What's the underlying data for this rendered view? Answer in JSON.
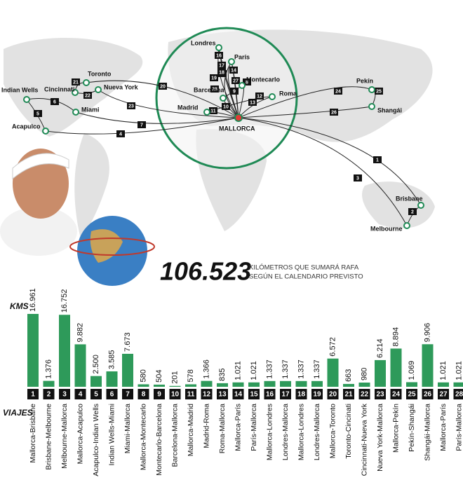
{
  "headline": {
    "total": "106.523",
    "caption_1": "KILÓMETROS QUE SUMARÁ RAFA",
    "caption_2": "SEGÚN EL CALENDARIO PREVISTO"
  },
  "map": {
    "cities": [
      "Londres",
      "París",
      "Barcelona",
      "Montecarlo",
      "Roma",
      "Madrid",
      "MALLORCA",
      "Toronto",
      "Cincinnati",
      "Nueva York",
      "Indian Wells",
      "Miami",
      "Acapulco",
      "Pekín",
      "Shangái",
      "Brisbane",
      "Melbourne"
    ]
  },
  "chart_data": {
    "type": "bar",
    "y_label": "KMS",
    "x_label": "VIAJES",
    "color": "#2e9a5a",
    "numbers": [
      1,
      2,
      3,
      4,
      5,
      6,
      7,
      8,
      9,
      10,
      11,
      12,
      13,
      14,
      15,
      16,
      17,
      18,
      19,
      20,
      21,
      22,
      23,
      24,
      25,
      26,
      27,
      28
    ],
    "categories": [
      "Mallorca-Brisbane",
      "Brisbane-Melbourne",
      "Melbourne-Mallorca",
      "Mallorca-Acapulco",
      "Acapulco-Indian Wells",
      "Indian Wells-Miami",
      "Miami-Mallorca",
      "Mallorca-Montecarlo",
      "Montecarlo-Barcelona",
      "Barcelona-Mallorca",
      "Mallorca-Madrid",
      "Madrid-Roma",
      "Roma-Mallorca",
      "Mallorca-París",
      "París-Mallorca",
      "Mallorca-Londres",
      "Londres-Mallorca",
      "Mallorca-Londres",
      "Londres-Mallorca",
      "Mallorca-Toronto",
      "Toronto-Cincinati",
      "Cincinnati-Nueva York",
      "Nueva York-Mallorca",
      "Mallorca-Pekín",
      "Pekín-Shangái",
      "Shangái-Mallorca",
      "Mallorca-París",
      "París-Mallorca"
    ],
    "values": [
      16961,
      1376,
      16752,
      9882,
      2500,
      3585,
      7673,
      580,
      504,
      201,
      578,
      1366,
      835,
      1021,
      1021,
      1337,
      1337,
      1337,
      1337,
      6572,
      663,
      980,
      6214,
      8894,
      1069,
      9906,
      1021,
      1021
    ],
    "value_labels": [
      "16.961",
      "1.376",
      "16.752",
      "9.882",
      "2.500",
      "3.585",
      "7.673",
      "580",
      "504",
      "201",
      "578",
      "1.366",
      "835",
      "1.021",
      "1.021",
      "1.337",
      "1.337",
      "1.337",
      "1.337",
      "6.572",
      "663",
      "980",
      "6.214",
      "8.894",
      "1.069",
      "9.906",
      "1.021",
      "1.021"
    ]
  }
}
